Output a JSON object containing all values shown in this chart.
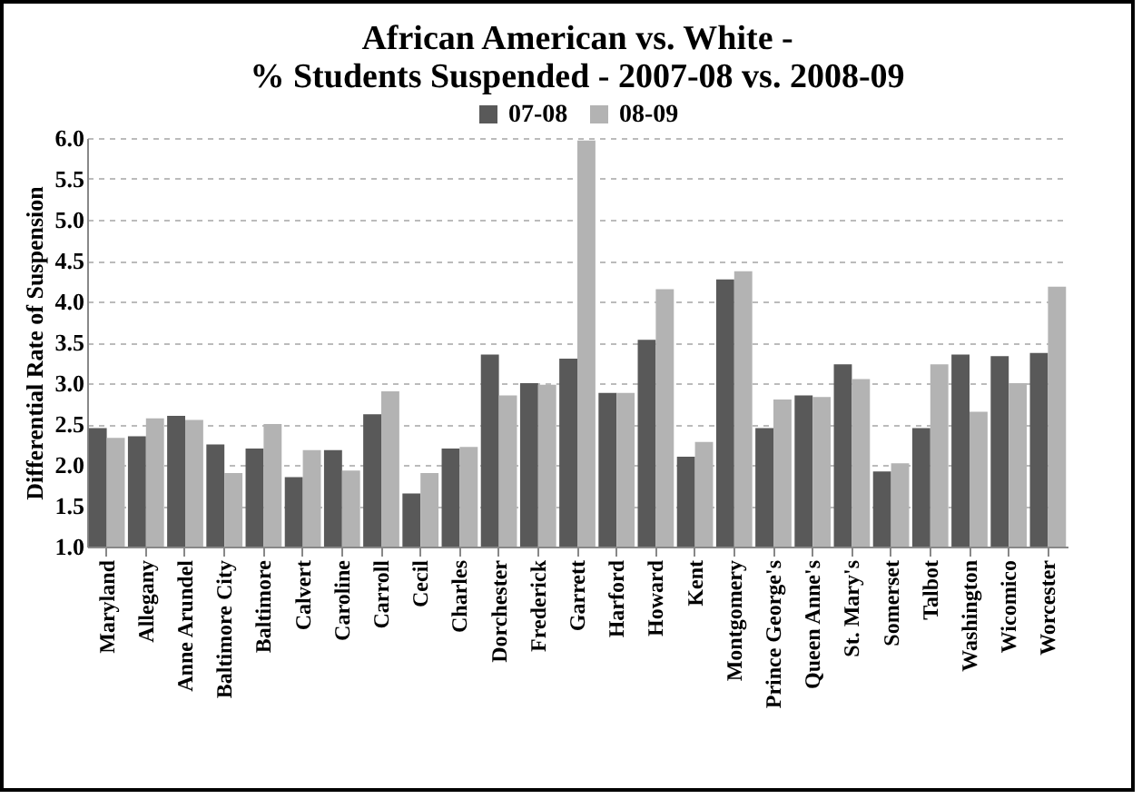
{
  "chart_data": {
    "type": "bar",
    "title": [
      "African American vs. White -",
      "% Students Suspended - 2007-08 vs. 2008-09"
    ],
    "ylabel": "Differential Rate of Suspension",
    "categories": [
      "Maryland",
      "Allegany",
      "Anne Arundel",
      "Baltimore City",
      "Baltimore",
      "Calvert",
      "Caroline",
      "Carroll",
      "Cecil",
      "Charles",
      "Dorchester",
      "Frederick",
      "Garrett",
      "Harford",
      "Howard",
      "Kent",
      "Montgomery",
      "Prince George's",
      "Queen Anne's",
      "St. Mary's",
      "Somerset",
      "Talbot",
      "Washington",
      "Wicomico",
      "Worcester"
    ],
    "series": [
      {
        "name": "07-08",
        "color": "#595959",
        "values": [
          2.45,
          2.35,
          2.6,
          2.25,
          2.2,
          1.85,
          2.18,
          2.62,
          1.65,
          2.2,
          3.35,
          3.0,
          3.3,
          2.88,
          3.53,
          2.1,
          4.27,
          2.45,
          2.85,
          3.23,
          1.92,
          2.45,
          3.35,
          3.33,
          3.37
        ]
      },
      {
        "name": "08-09",
        "color": "#b3b3b3",
        "values": [
          2.33,
          2.57,
          2.55,
          1.9,
          2.5,
          2.18,
          1.93,
          2.9,
          1.9,
          2.22,
          2.85,
          2.98,
          5.97,
          2.88,
          4.15,
          2.28,
          4.37,
          2.8,
          2.83,
          3.05,
          2.02,
          3.23,
          2.65,
          3.0,
          4.18
        ]
      }
    ],
    "ylim": [
      1,
      6
    ],
    "yticks": [
      {
        "value": 1,
        "label": "1.0"
      },
      {
        "value": 1.5,
        "label": "1.5"
      },
      {
        "value": 2,
        "label": "2.0"
      },
      {
        "value": 2.5,
        "label": "2.5"
      },
      {
        "value": 3,
        "label": "3.0"
      },
      {
        "value": 3.5,
        "label": "3.5"
      },
      {
        "value": 4,
        "label": "4.0"
      },
      {
        "value": 4.5,
        "label": "4.5"
      },
      {
        "value": 5,
        "label": "5.0"
      },
      {
        "value": 5.5,
        "label": "5.5"
      },
      {
        "value": 6,
        "label": "6.0"
      }
    ],
    "grid": "y",
    "legend": "top"
  }
}
